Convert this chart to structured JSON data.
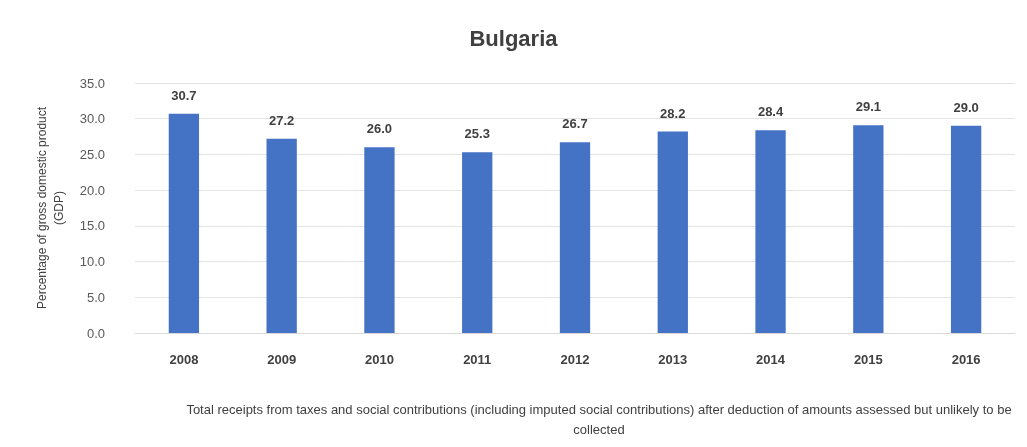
{
  "chart_data": {
    "type": "bar",
    "title": "Bulgaria",
    "ylabel": "Percentage of gross domestic product\n(GDP)",
    "annotations": [
      "Total receipts from taxes and social contributions (including imputed social contributions) after deduction of amounts assessed but unlikely to be collected"
    ],
    "categories": [
      "2008",
      "2009",
      "2010",
      "2011",
      "2012",
      "2013",
      "2014",
      "2015",
      "2016"
    ],
    "values": [
      30.7,
      27.2,
      26.0,
      25.3,
      26.7,
      28.2,
      28.4,
      29.1,
      29.0
    ],
    "color": "#4472c4",
    "value_labels": [
      "30.7",
      "27.2",
      "26.0",
      "25.3",
      "26.7",
      "28.2",
      "28.4",
      "29.1",
      "29.0"
    ],
    "ylim": [
      0,
      35
    ],
    "yticks": [
      {
        "value": 0,
        "label": "0.0"
      },
      {
        "value": 5,
        "label": "5.0"
      },
      {
        "value": 10,
        "label": "10.0"
      },
      {
        "value": 15,
        "label": "15.0"
      },
      {
        "value": 20,
        "label": "20.0"
      },
      {
        "value": 25,
        "label": "25.0"
      },
      {
        "value": 30,
        "label": "30.0"
      },
      {
        "value": 35,
        "label": "35.0"
      }
    ],
    "grid": "y"
  }
}
